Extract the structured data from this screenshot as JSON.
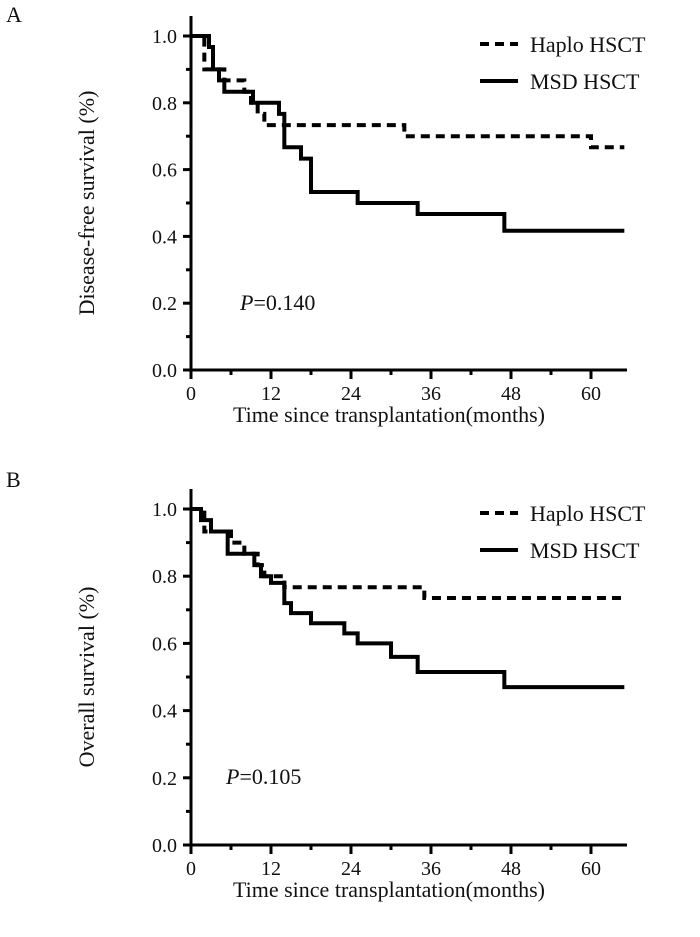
{
  "chart_data": [
    {
      "panel": "A",
      "type": "line",
      "subtype": "kaplan-meier-step",
      "title": "",
      "xlabel": "Time since transplantation(months)",
      "ylabel": "Disease-free survival (%)",
      "xlim": [
        0,
        65
      ],
      "ylim": [
        0,
        1.0
      ],
      "xticks": [
        0,
        12,
        24,
        36,
        48,
        60
      ],
      "xtick_labels": [
        "0",
        "12",
        "24",
        "36",
        "48",
        "60"
      ],
      "yticks": [
        0.0,
        0.2,
        0.4,
        0.6,
        0.8,
        1.0
      ],
      "ytick_labels": [
        "0.0",
        "0.2",
        "0.4",
        "0.6",
        "0.8",
        "1.0"
      ],
      "grid": false,
      "legend_position": "top-right",
      "annotation": {
        "p_label": "P",
        "p_value": "=0.140"
      },
      "series": [
        {
          "name": "Haplo HSCT",
          "style": "dashed",
          "x": [
            0,
            2,
            5,
            8,
            9,
            10,
            11,
            32,
            60,
            65
          ],
          "y": [
            1.0,
            0.9,
            0.867,
            0.833,
            0.8,
            0.767,
            0.733,
            0.7,
            0.667,
            0.667
          ]
        },
        {
          "name": "MSD HSCT",
          "style": "solid",
          "x": [
            0,
            2.7,
            3.3,
            4.2,
            5,
            9.3,
            13.2,
            14,
            16.5,
            18,
            25,
            34,
            47,
            65
          ],
          "y": [
            1.0,
            0.967,
            0.9,
            0.867,
            0.833,
            0.8,
            0.767,
            0.667,
            0.633,
            0.533,
            0.5,
            0.467,
            0.417,
            0.417
          ]
        }
      ]
    },
    {
      "panel": "B",
      "type": "line",
      "subtype": "kaplan-meier-step",
      "title": "",
      "xlabel": "Time since transplantation(months)",
      "ylabel": "Overall survival (%)",
      "xlim": [
        0,
        65
      ],
      "ylim": [
        0,
        1.0
      ],
      "xticks": [
        0,
        12,
        24,
        36,
        48,
        60
      ],
      "xtick_labels": [
        "0",
        "12",
        "24",
        "36",
        "48",
        "60"
      ],
      "yticks": [
        0.0,
        0.2,
        0.4,
        0.6,
        0.8,
        1.0
      ],
      "ytick_labels": [
        "0.0",
        "0.2",
        "0.4",
        "0.6",
        "0.8",
        "1.0"
      ],
      "grid": false,
      "legend_position": "top-right",
      "annotation": {
        "p_label": "P",
        "p_value": "=0.105"
      },
      "series": [
        {
          "name": "Haplo HSCT",
          "style": "dashed",
          "x": [
            0,
            2,
            6,
            8,
            10,
            11,
            14,
            35,
            65
          ],
          "y": [
            1.0,
            0.933,
            0.9,
            0.867,
            0.833,
            0.8,
            0.767,
            0.735,
            0.735
          ]
        },
        {
          "name": "MSD HSCT",
          "style": "solid",
          "x": [
            0,
            1.5,
            3,
            5.5,
            9.5,
            10.5,
            12,
            14,
            15,
            18,
            23,
            25,
            30,
            34,
            47,
            65
          ],
          "y": [
            1.0,
            0.967,
            0.933,
            0.867,
            0.833,
            0.8,
            0.78,
            0.72,
            0.69,
            0.66,
            0.63,
            0.6,
            0.56,
            0.515,
            0.47,
            0.47
          ]
        }
      ]
    }
  ]
}
